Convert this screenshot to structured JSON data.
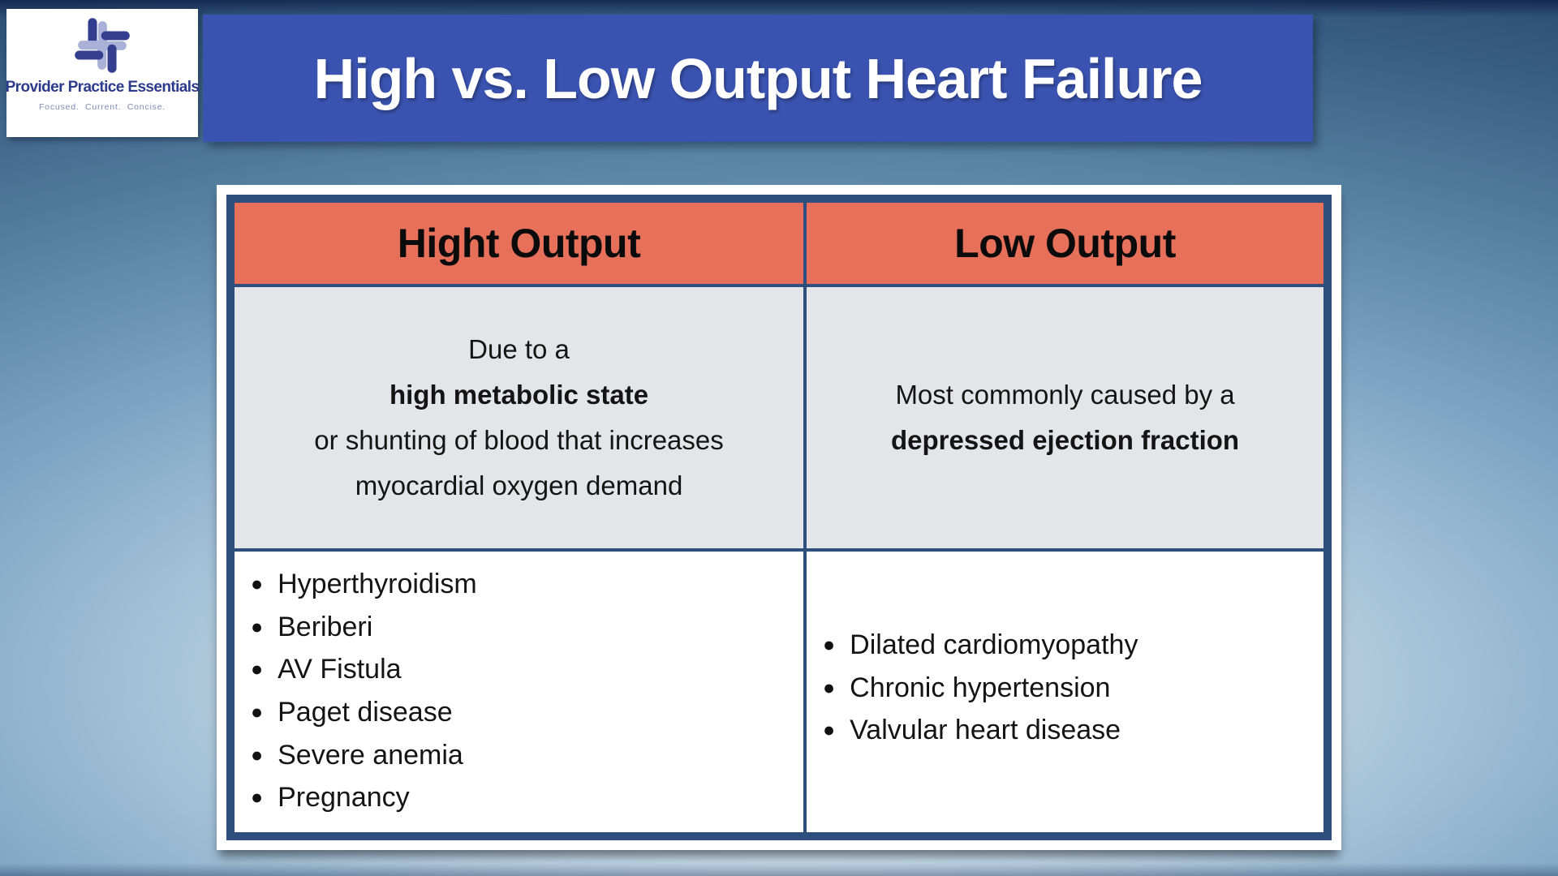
{
  "slide": {
    "logo": {
      "icon": "ppe-cross-logo",
      "brand": "Provider Practice Essentials",
      "tagline": "Focused.  Current.  Concise."
    },
    "title": "High vs. Low Output Heart Failure",
    "table": {
      "columns": [
        {
          "header": "Hight Output",
          "description_segments": [
            {
              "text": "Due to a ",
              "bold": false
            },
            {
              "text": "high metabolic state",
              "bold": true
            },
            {
              "text": " or shunting of blood that increases myocardial oxygen demand",
              "bold": false
            }
          ],
          "items": [
            "Hyperthyroidism",
            "Beriberi",
            "AV Fistula",
            "Paget disease",
            "Severe anemia",
            "Pregnancy"
          ]
        },
        {
          "header": "Low Output",
          "description_segments": [
            {
              "text": "Most commonly caused by a ",
              "bold": false
            },
            {
              "text": "depressed ejection fraction",
              "bold": true
            }
          ],
          "items": [
            "Dilated cardiomyopathy",
            "Chronic hypertension",
            "Valvular heart disease"
          ]
        }
      ]
    },
    "colors": {
      "banner_blue": "#3a53b0",
      "header_coral": "#e7705a",
      "table_border_navy": "#2e4e7e",
      "description_bg": "#e4e5e9",
      "logo_dark": "#343e8f",
      "logo_light": "#a9b1d6",
      "bullet": "#111111"
    }
  }
}
